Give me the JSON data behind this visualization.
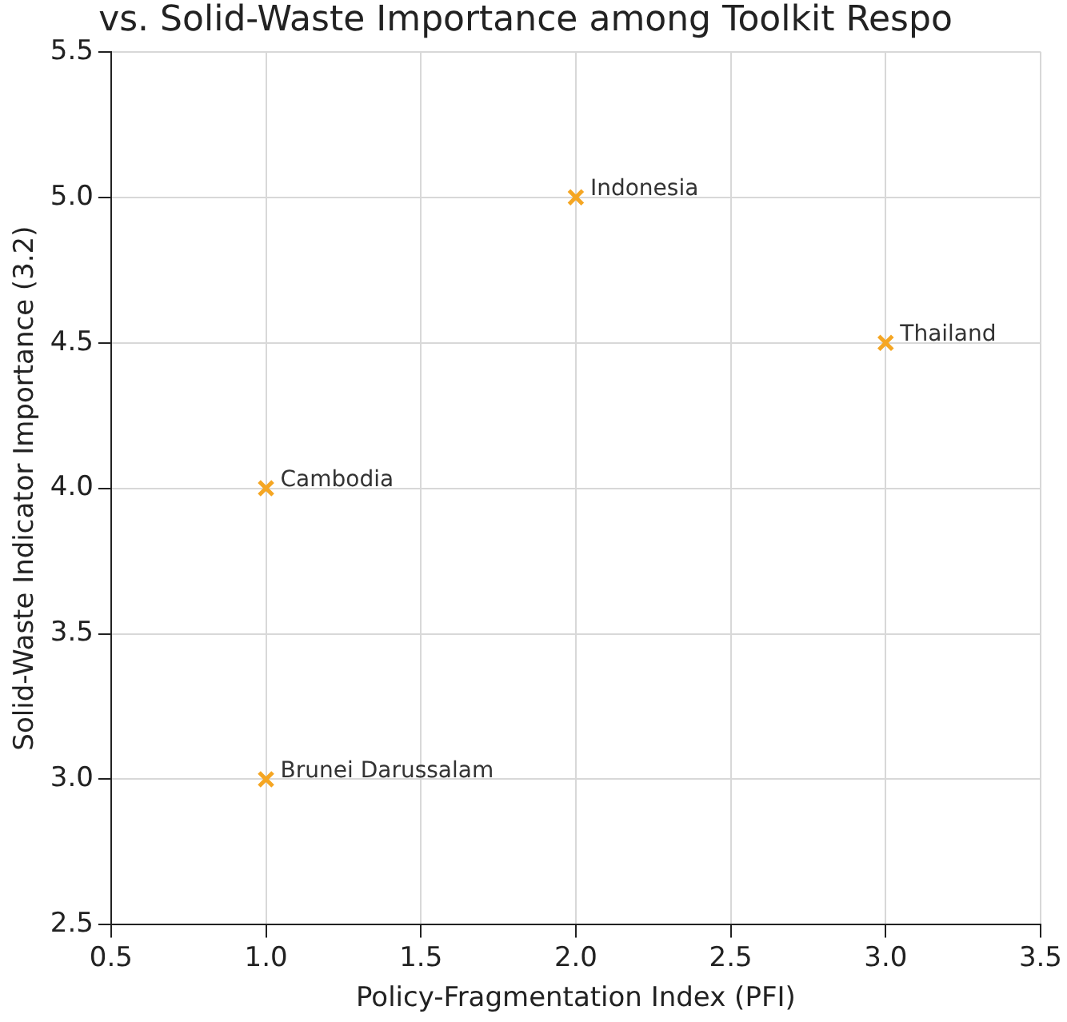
{
  "chart_data": {
    "type": "scatter",
    "title": "vs. Solid-Waste Importance among Toolkit Respo",
    "xlabel": "Policy-Fragmentation Index (PFI)",
    "ylabel": "Solid-Waste Indicator Importance (3.2)",
    "x": [
      1,
      2,
      3,
      1
    ],
    "series": [
      {
        "color": "#f5a623",
        "values": [
          3,
          5,
          4.5,
          4
        ]
      }
    ],
    "marker": "cross",
    "grid": true,
    "xlim": [
      0.5,
      3.5
    ],
    "xticks": [
      0.5,
      {
        "value": 1,
        "label": "1.0"
      },
      1.5,
      {
        "value": 2,
        "label": "2.0"
      },
      2.5,
      {
        "value": 3,
        "label": "3.0"
      },
      3.5
    ],
    "ylim": [
      2.5,
      5.5
    ],
    "yticks": [
      2.5,
      {
        "value": 3,
        "label": "3.0"
      },
      3.5,
      {
        "value": 4,
        "label": "4.0"
      },
      4.5,
      {
        "value": 5,
        "label": "5.0"
      },
      5.5
    ],
    "annotations": [
      {
        "text": "Brunei Darussalam",
        "x": 1,
        "y": 3
      },
      {
        "text": "Indonesia",
        "x": 2,
        "y": 5
      },
      {
        "text": "Thailand",
        "x": 3,
        "y": 4.5
      },
      {
        "text": "Cambodia",
        "x": 1,
        "y": 4
      }
    ]
  }
}
